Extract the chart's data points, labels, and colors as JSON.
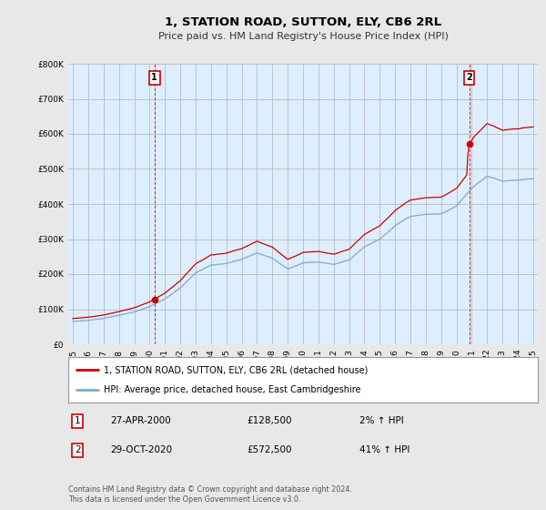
{
  "title": "1, STATION ROAD, SUTTON, ELY, CB6 2RL",
  "subtitle": "Price paid vs. HM Land Registry's House Price Index (HPI)",
  "yticks": [
    0,
    100000,
    200000,
    300000,
    400000,
    500000,
    600000,
    700000,
    800000
  ],
  "hpi_color": "#7faacc",
  "price_color": "#cc0000",
  "annotation_box_color": "#cc0000",
  "grid_color": "#bbbbbb",
  "background_color": "#e8e8e8",
  "plot_bg_color": "#ddeeff",
  "legend_label_price": "1, STATION ROAD, SUTTON, ELY, CB6 2RL (detached house)",
  "legend_label_hpi": "HPI: Average price, detached house, East Cambridgeshire",
  "annotation1_num": "1",
  "annotation1_date": "27-APR-2000",
  "annotation1_price": "£128,500",
  "annotation1_hpi": "2% ↑ HPI",
  "annotation2_num": "2",
  "annotation2_date": "29-OCT-2020",
  "annotation2_price": "£572,500",
  "annotation2_hpi": "41% ↑ HPI",
  "footer": "Contains HM Land Registry data © Crown copyright and database right 2024.\nThis data is licensed under the Open Government Licence v3.0.",
  "sale1_x": 2000.32,
  "sale1_y": 128500,
  "sale2_x": 2020.83,
  "sale2_y": 572500,
  "xmin": 1994.7,
  "xmax": 2025.3,
  "ymin": 0,
  "ymax": 800000
}
